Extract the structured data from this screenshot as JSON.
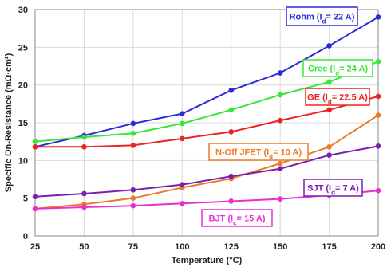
{
  "chart_data": {
    "type": "line",
    "xlabel": "Temperature (°C)",
    "ylabel": "Specific On-Resistance (mΩ·cm²)",
    "x": [
      25,
      50,
      75,
      100,
      125,
      150,
      175,
      200
    ],
    "xlim": [
      25,
      200
    ],
    "ylim": [
      0,
      30
    ],
    "yticks": [
      0,
      5,
      10,
      15,
      20,
      25,
      30
    ],
    "grid": true,
    "series": [
      {
        "name": "Rohm (Id= 22 A)",
        "label_main": "Rohm (I",
        "label_sub": "d",
        "label_tail": "= 22 A)",
        "color": "#2b2bd9",
        "values": [
          11.8,
          13.3,
          14.9,
          16.2,
          19.3,
          21.6,
          25.2,
          29.0
        ]
      },
      {
        "name": "Cree (Id= 24 A)",
        "label_main": "Cree (I",
        "label_sub": "d",
        "label_tail": "= 24 A)",
        "color": "#37e637",
        "values": [
          12.5,
          13.1,
          13.6,
          14.9,
          16.7,
          18.7,
          20.4,
          23.1
        ]
      },
      {
        "name": "GE (Id= 22.5 A)",
        "label_main": "GE (I",
        "label_sub": "d",
        "label_tail": "= 22.5 A)",
        "color": "#e82525",
        "values": [
          11.8,
          11.8,
          12.0,
          12.9,
          13.8,
          15.3,
          16.7,
          18.5
        ]
      },
      {
        "name": "N-Off JFET (Id= 10 A)",
        "label_main": "N-Off JFET (I",
        "label_sub": "d",
        "label_tail": "= 10 A)",
        "color": "#f07a22",
        "values": [
          3.6,
          4.2,
          5.0,
          6.4,
          7.6,
          9.6,
          11.8,
          16.0
        ]
      },
      {
        "name": "SJT (Id= 7 A)",
        "label_main": "SJT (I",
        "label_sub": "d",
        "label_tail": "= 7 A)",
        "color": "#7a1fb3",
        "values": [
          5.2,
          5.6,
          6.1,
          6.8,
          7.9,
          8.9,
          10.7,
          11.9
        ]
      },
      {
        "name": "BJT (Ic= 15 A)",
        "label_main": "BJT (I",
        "label_sub": "c",
        "label_tail": "= 15 A)",
        "color": "#ea2fd2",
        "values": [
          3.6,
          3.8,
          4.0,
          4.3,
          4.6,
          4.9,
          5.4,
          6.0
        ]
      }
    ]
  }
}
